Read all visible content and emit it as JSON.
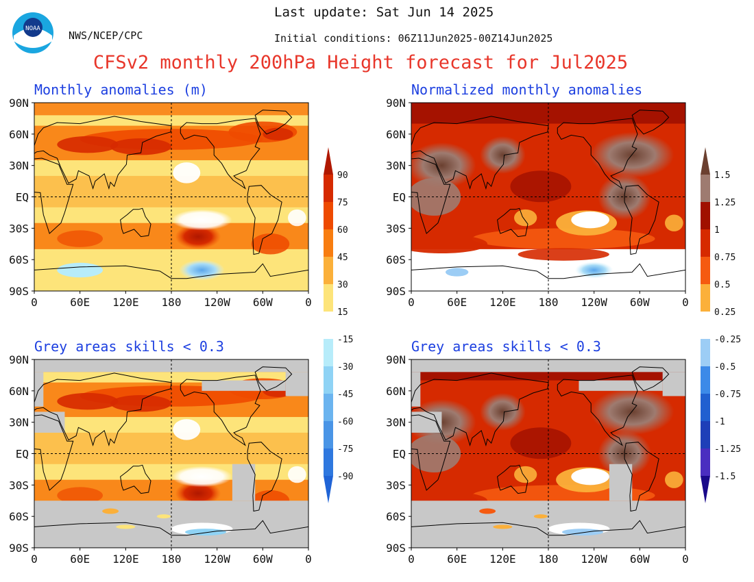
{
  "header": {
    "org": "NWS/NCEP/CPC",
    "last_update": "Last update: Sat Jun 14 2025",
    "initial_conditions": "Initial conditions: 06Z11Jun2025-00Z14Jun2025",
    "title": "CFSv2 monthly 200hPa Height forecast for Jul2025",
    "logo_text": "NOAA"
  },
  "panels": [
    {
      "id": "anom",
      "title": "Monthly anomalies (m)",
      "masked": false,
      "colorbar": "m"
    },
    {
      "id": "norm",
      "title": "Normalized monthly anomalies",
      "masked": false,
      "colorbar": "norm"
    },
    {
      "id": "anom_skill",
      "title": "Grey areas skills < 0.3",
      "masked": true,
      "colorbar": "m"
    },
    {
      "id": "norm_skill",
      "title": "Grey areas skills < 0.3",
      "masked": true,
      "colorbar": "norm"
    }
  ],
  "axes": {
    "lat_labels": [
      "90N",
      "60N",
      "30N",
      "EQ",
      "30S",
      "60S",
      "90S"
    ],
    "lon_labels": [
      "0",
      "60E",
      "120E",
      "180",
      "120W",
      "60W",
      "0"
    ]
  },
  "colorbars": {
    "m": {
      "labels": [
        "90",
        "75",
        "60",
        "45",
        "30",
        "15",
        "-15",
        "-30",
        "-45",
        "-60",
        "-75",
        "-90"
      ],
      "colors": [
        "#b01800",
        "#d62a00",
        "#ee4a00",
        "#f87d10",
        "#fbb03a",
        "#fde47a",
        "#ffffff",
        "#b7ecfa",
        "#8fd3f5",
        "#6bb4ef",
        "#4a95e6",
        "#2f78df",
        "#2064d6"
      ]
    },
    "norm": {
      "labels": [
        "1.5",
        "1.25",
        "1",
        "0.75",
        "0.5",
        "0.25",
        "-0.25",
        "-0.5",
        "-0.75",
        "-1",
        "-1.25",
        "-1.5"
      ],
      "colors": [
        "#6b4030",
        "#9e7b70",
        "#a01000",
        "#d62a00",
        "#f55a10",
        "#fbb03a",
        "#ffffff",
        "#9ccdf5",
        "#3c8ae8",
        "#2060d0",
        "#1e3fb8",
        "#4a2ec0",
        "#1a0a8a"
      ]
    }
  }
}
